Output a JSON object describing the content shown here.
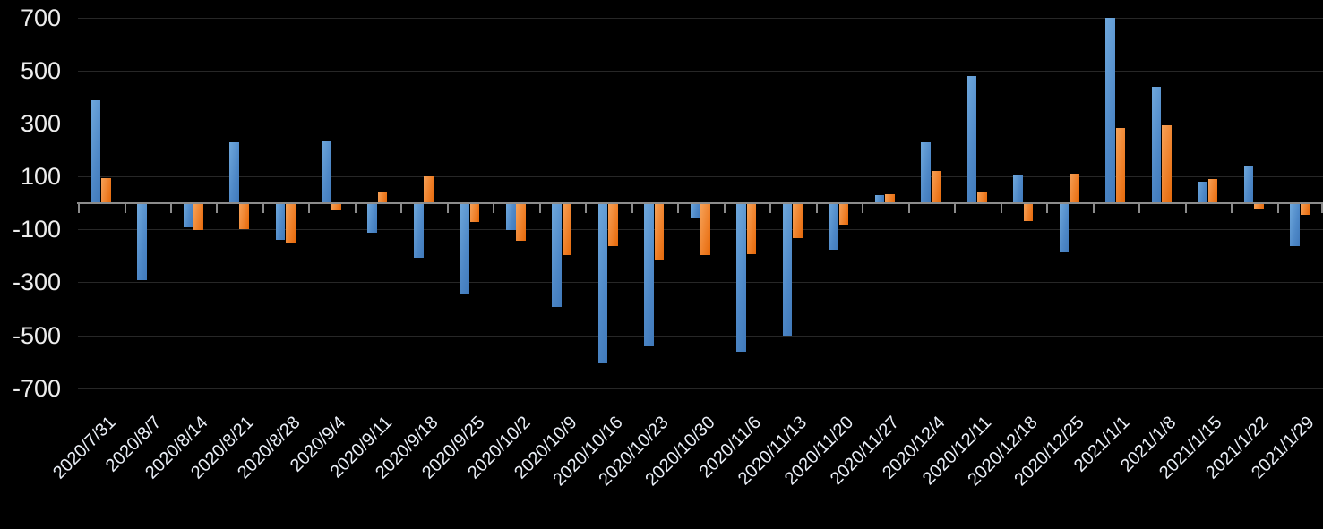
{
  "chart_data": {
    "type": "bar",
    "title": "",
    "legend_position": "none",
    "grid": true,
    "background_color": "#000000",
    "axis_color": "#8C8C8C",
    "gridline_color": "#272727",
    "tick_label_color": "#EDEDED",
    "ylim": [
      -700,
      700
    ],
    "y_ticks": [
      700,
      500,
      300,
      100,
      -100,
      -300,
      -500,
      -700
    ],
    "categories": [
      "2020/7/31",
      "2020/8/7",
      "2020/8/14",
      "2020/8/21",
      "2020/8/28",
      "2020/9/4",
      "2020/9/11",
      "2020/9/18",
      "2020/9/25",
      "2020/10/2",
      "2020/10/9",
      "2020/10/16",
      "2020/10/23",
      "2020/10/30",
      "2020/11/6",
      "2020/11/13",
      "2020/11/20",
      "2020/11/27",
      "2020/12/4",
      "2020/12/11",
      "2020/12/18",
      "2020/12/25",
      "2021/1/1",
      "2021/1/8",
      "2021/1/15",
      "2021/1/22",
      "2021/1/29"
    ],
    "series": [
      {
        "name": "blue-series",
        "color": "#5B9BD5",
        "values": [
          390,
          -290,
          -90,
          230,
          -135,
          235,
          -110,
          -205,
          -340,
          -100,
          -390,
          -600,
          -535,
          -55,
          -560,
          -500,
          -175,
          30,
          230,
          480,
          105,
          -185,
          700,
          440,
          80,
          140,
          -160
        ]
      },
      {
        "name": "orange-series",
        "color": "#ED7D31",
        "values": [
          95,
          0,
          -100,
          -95,
          -145,
          -25,
          40,
          100,
          -70,
          -140,
          -195,
          -160,
          -210,
          -195,
          -190,
          -130,
          -80,
          35,
          120,
          40,
          -65,
          110,
          285,
          295,
          90,
          -20,
          -40
        ]
      }
    ]
  }
}
